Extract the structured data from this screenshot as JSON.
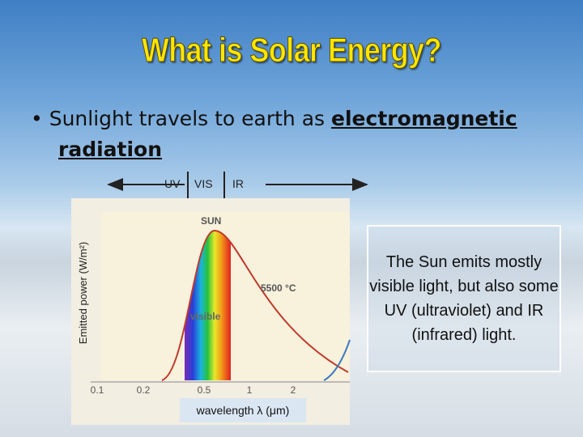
{
  "title": "What is Solar Energy?",
  "bullet": {
    "text": "Sunlight travels to earth as ",
    "link": "electromagnetic radiation"
  },
  "figure": {
    "bands": [
      "UV",
      "VIS",
      "IR"
    ],
    "y_label": "Emitted power (W/m²)",
    "curve_label": "SUN",
    "temperature": "5500 °C",
    "region_label": "visible",
    "x_ticks": [
      "0.1",
      "0.2",
      "0.5",
      "1",
      "2"
    ],
    "x_label": "wavelength λ (μm)"
  },
  "callout": "The Sun emits mostly visible light, but also some UV (ultraviolet) and IR (infrared) light."
}
